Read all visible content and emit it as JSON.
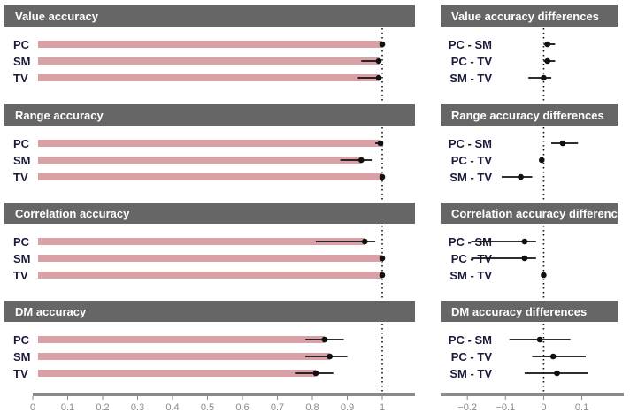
{
  "colors": {
    "header": "#666666",
    "bar": "#d9a0a6",
    "point": "#111111",
    "axis": "#8a8a8a",
    "label": "#1a1a3a"
  },
  "chart_data": [
    {
      "type": "bar",
      "title": "Value accuracy",
      "categories": [
        "PC",
        "SM",
        "TV"
      ],
      "values": [
        1.0,
        0.99,
        0.99
      ],
      "ci": [
        [
          null,
          null
        ],
        [
          0.94,
          0.99
        ],
        [
          0.93,
          0.99
        ]
      ],
      "xlim": [
        0,
        1.0
      ],
      "reference_line": 1.0
    },
    {
      "type": "scatter",
      "title": "Value accuracy differences",
      "categories": [
        "PC - SM",
        "PC - TV",
        "SM - TV"
      ],
      "values": [
        0.01,
        0.01,
        0.0
      ],
      "ci": [
        [
          0.0,
          0.03
        ],
        [
          0.0,
          0.03
        ],
        [
          -0.04,
          0.02
        ]
      ],
      "xlim": [
        -0.27,
        0.21
      ],
      "reference_line": 0
    },
    {
      "type": "bar",
      "title": "Range accuracy",
      "categories": [
        "PC",
        "SM",
        "TV"
      ],
      "values": [
        0.995,
        0.94,
        1.0
      ],
      "ci": [
        [
          0.98,
          1.0
        ],
        [
          0.88,
          0.97
        ],
        [
          null,
          null
        ]
      ],
      "xlim": [
        0,
        1.0
      ],
      "reference_line": 1.0
    },
    {
      "type": "scatter",
      "title": "Range accuracy differences",
      "categories": [
        "PC - SM",
        "PC - TV",
        "SM - TV"
      ],
      "values": [
        0.05,
        -0.005,
        -0.06
      ],
      "ci": [
        [
          0.02,
          0.09
        ],
        [
          -0.01,
          0.0
        ],
        [
          -0.11,
          -0.03
        ]
      ],
      "xlim": [
        -0.27,
        0.21
      ],
      "reference_line": 0
    },
    {
      "type": "bar",
      "title": "Correlation accuracy",
      "categories": [
        "PC",
        "SM",
        "TV"
      ],
      "values": [
        0.95,
        1.0,
        1.0
      ],
      "ci": [
        [
          0.81,
          0.98
        ],
        [
          null,
          null
        ],
        [
          null,
          null
        ]
      ],
      "xlim": [
        0,
        1.0
      ],
      "reference_line": 1.0
    },
    {
      "type": "scatter",
      "title": "Correlation accuracy differences",
      "categories": [
        "PC - SM",
        "PC - TV",
        "SM - TV"
      ],
      "values": [
        -0.05,
        -0.05,
        0.0
      ],
      "ci": [
        [
          -0.19,
          -0.02
        ],
        [
          -0.19,
          -0.02
        ],
        [
          null,
          null
        ]
      ],
      "xlim": [
        -0.27,
        0.21
      ],
      "reference_line": 0
    },
    {
      "type": "bar",
      "title": "DM accuracy",
      "categories": [
        "PC",
        "SM",
        "TV"
      ],
      "values": [
        0.835,
        0.85,
        0.81
      ],
      "ci": [
        [
          0.78,
          0.89
        ],
        [
          0.78,
          0.9
        ],
        [
          0.75,
          0.86
        ]
      ],
      "xlim": [
        0,
        1.0
      ],
      "reference_line": 1.0,
      "xticks": [
        0,
        0.1,
        0.2,
        0.3,
        0.4,
        0.5,
        0.6,
        0.7,
        0.8,
        0.9,
        1
      ],
      "xtick_labels": [
        "0",
        "0.1",
        "0.2",
        "0.3",
        "0.4",
        "0.5",
        "0.6",
        "0.7",
        "0.8",
        "0.9",
        "1"
      ]
    },
    {
      "type": "scatter",
      "title": "DM accuracy differences",
      "categories": [
        "PC - SM",
        "PC - TV",
        "SM - TV"
      ],
      "values": [
        -0.01,
        0.025,
        0.035
      ],
      "ci": [
        [
          -0.09,
          0.07
        ],
        [
          -0.03,
          0.11
        ],
        [
          -0.05,
          0.115
        ]
      ],
      "xlim": [
        -0.27,
        0.21
      ],
      "reference_line": 0,
      "xticks": [
        -0.2,
        -0.1,
        0,
        0.1
      ],
      "xtick_labels": [
        "−0.2",
        "−0.1",
        "0",
        "0.1"
      ]
    }
  ]
}
